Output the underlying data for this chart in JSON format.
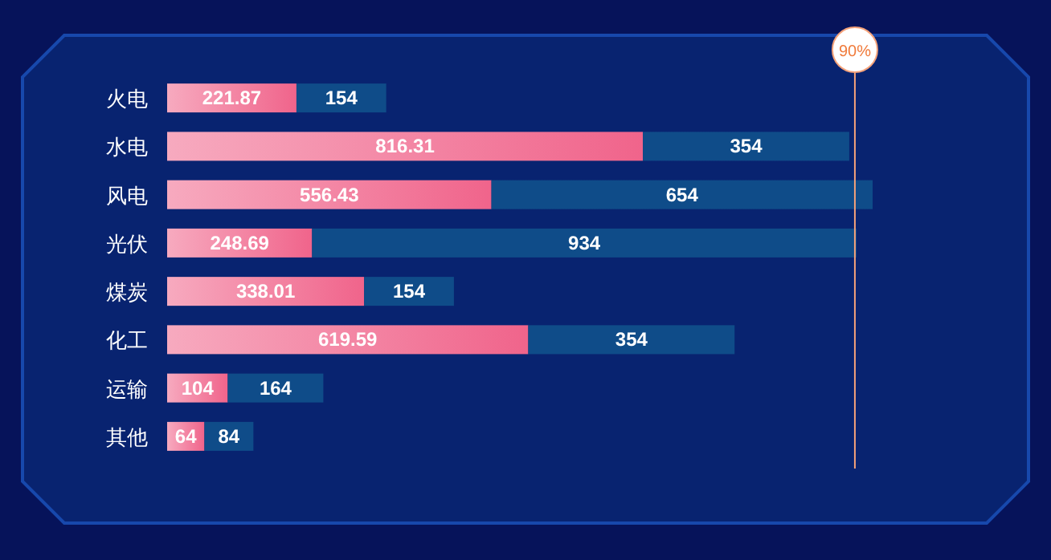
{
  "chart_data": {
    "type": "bar",
    "orientation": "horizontal",
    "stacked": true,
    "categories": [
      "火电",
      "水电",
      "风电",
      "光伏",
      "煤炭",
      "化工",
      "运输",
      "其他"
    ],
    "series": [
      {
        "color": "#f0648b",
        "values": [
          221.87,
          816.31,
          556.43,
          248.69,
          338.01,
          619.59,
          104,
          64
        ]
      },
      {
        "color": "#0f4c89",
        "values": [
          154,
          354,
          654,
          934,
          154,
          354,
          164,
          84
        ]
      }
    ],
    "data_labels": true,
    "tick_labels": "y",
    "ref_lines": [
      {
        "axis": "x",
        "value": 1180,
        "color": "#f4a27a"
      }
    ],
    "annotations": [
      "90%"
    ]
  }
}
